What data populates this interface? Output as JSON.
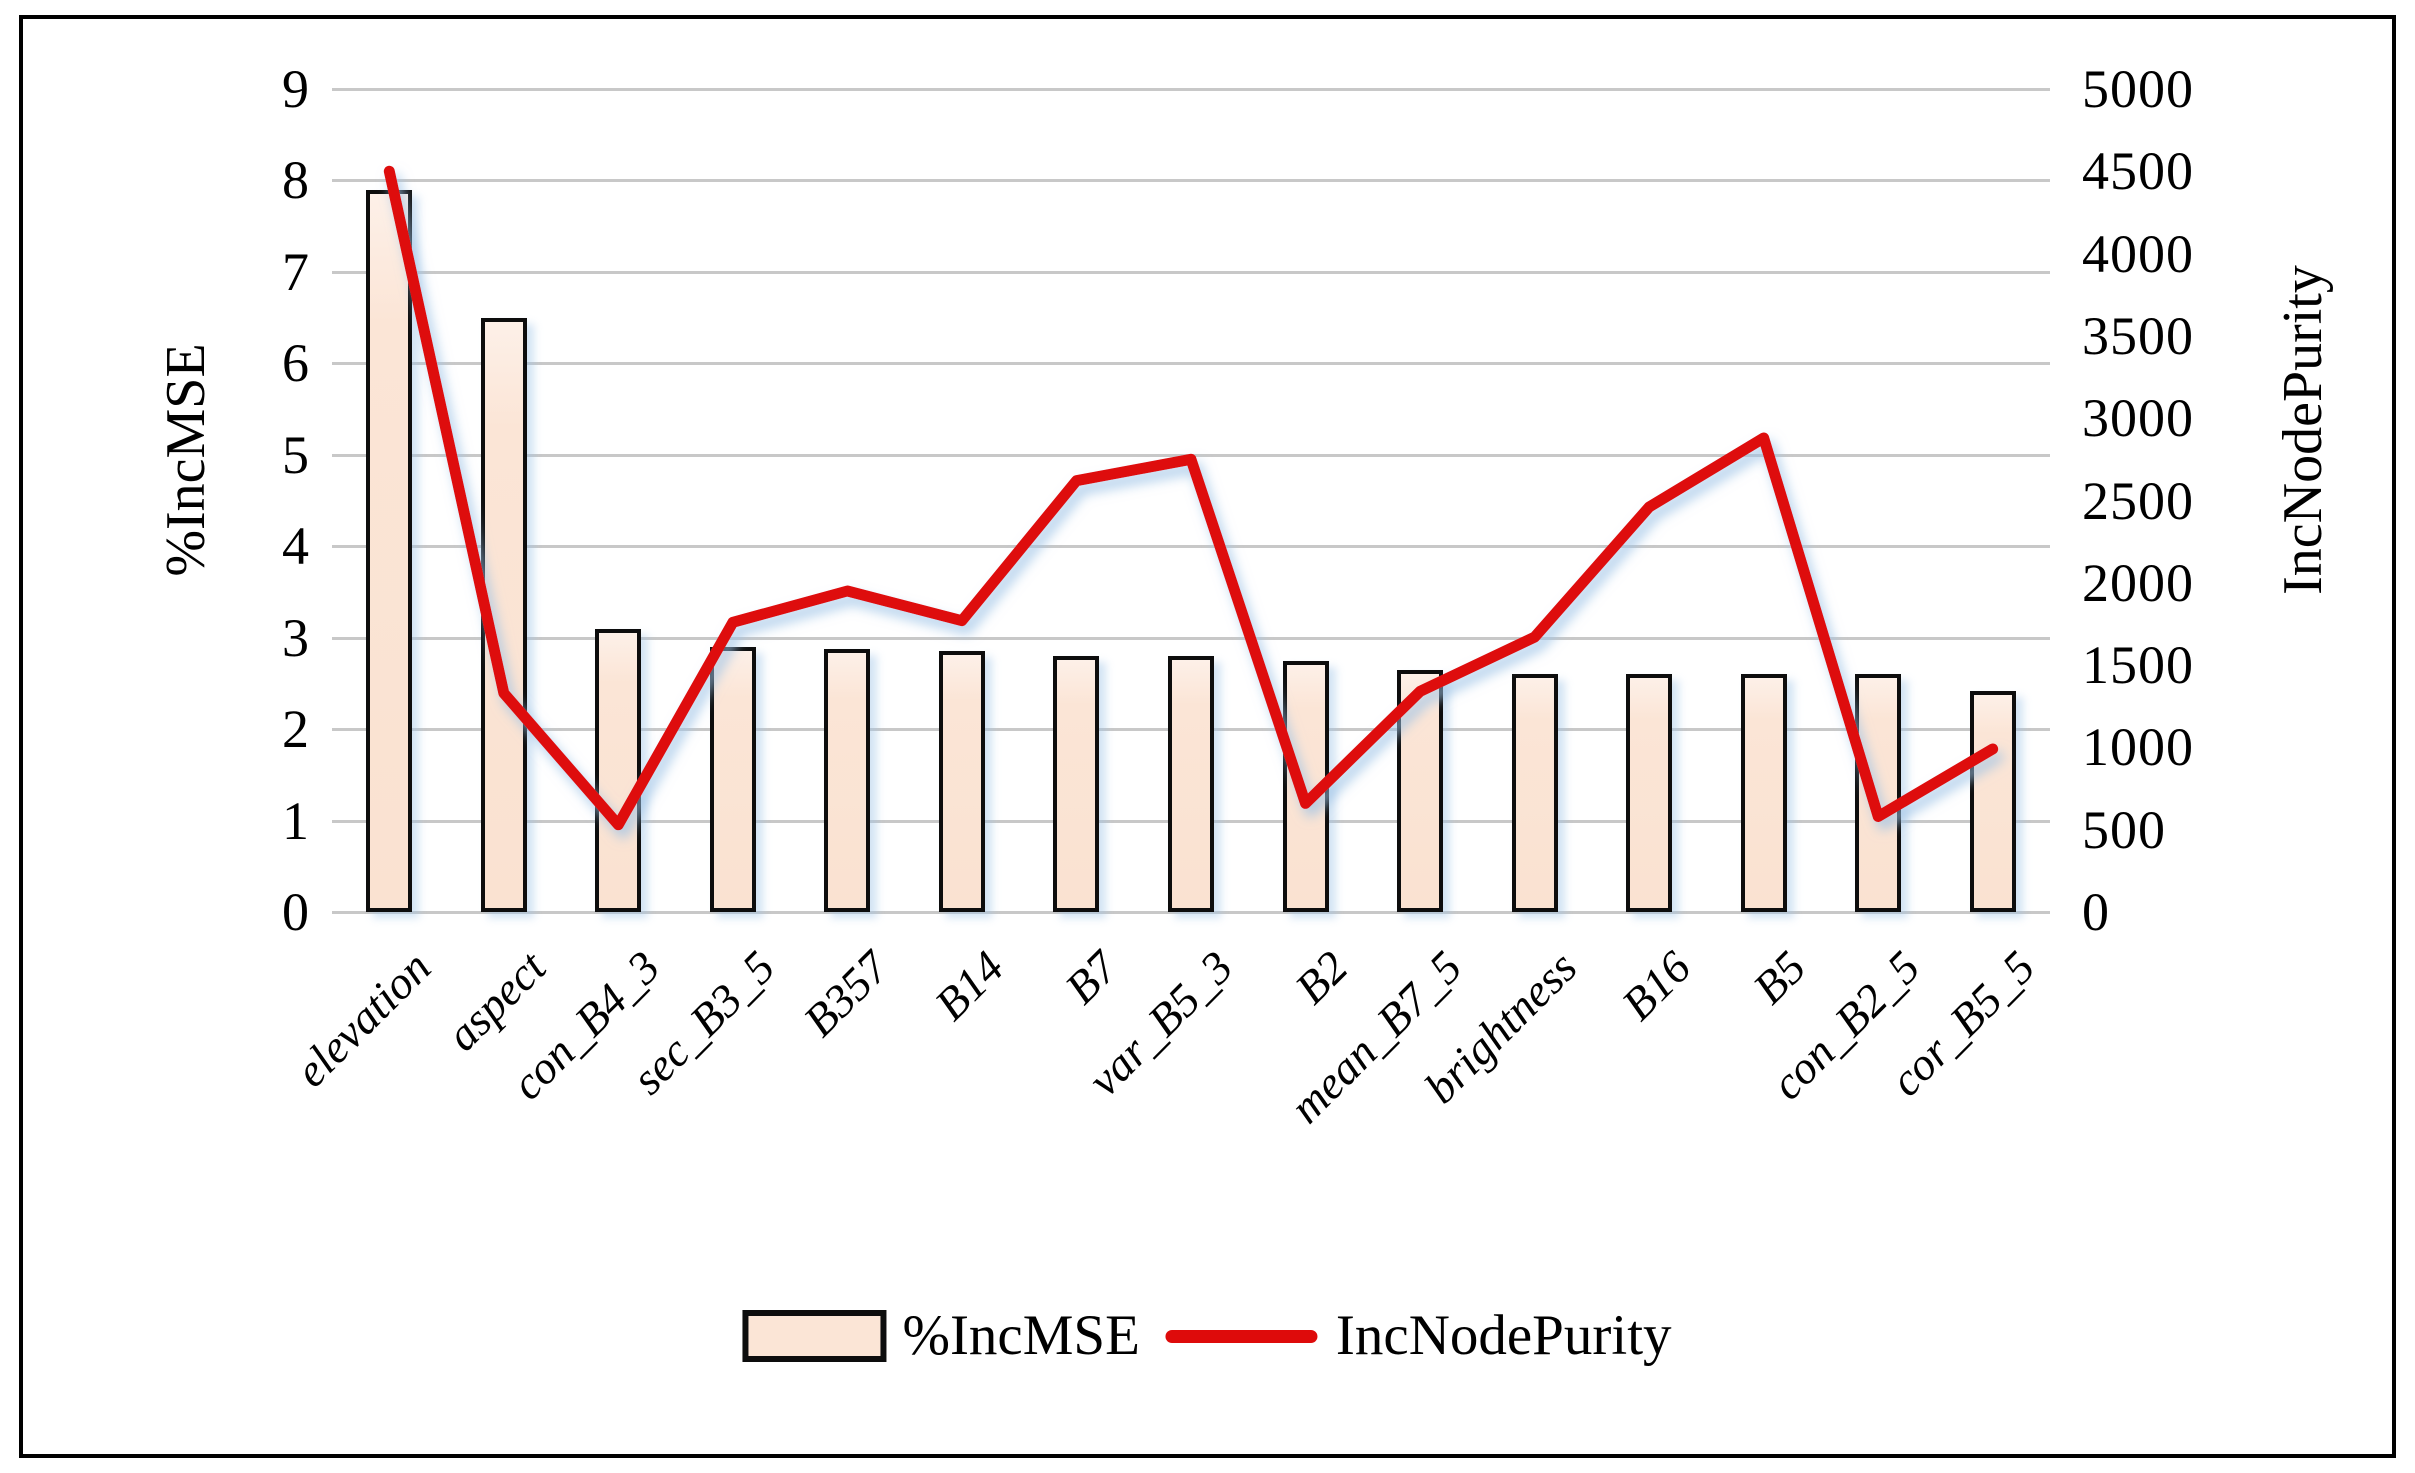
{
  "chart_data": {
    "type": "bar+line combo",
    "categories": [
      "elevation",
      "aspect",
      "con_B4_3",
      "sec_B3_5",
      "B357",
      "B14",
      "B7",
      "var_B5_3",
      "B2",
      "mean_B7_5",
      "brightness",
      "B16",
      "B5",
      "con_B2_5",
      "cor_B5_5"
    ],
    "series": [
      {
        "name": "%IncMSE",
        "type": "bar",
        "axis": "left",
        "values": [
          7.9,
          6.5,
          3.1,
          2.9,
          2.88,
          2.85,
          2.8,
          2.8,
          2.74,
          2.65,
          2.6,
          2.6,
          2.6,
          2.6,
          2.42
        ]
      },
      {
        "name": "IncNodePurity",
        "type": "line",
        "axis": "right",
        "values": [
          4500,
          1330,
          530,
          1760,
          1950,
          1770,
          2620,
          2750,
          660,
          1340,
          1670,
          2460,
          2880,
          580,
          990
        ]
      }
    ],
    "left_axis": {
      "label": "%IncMSE",
      "min": 0,
      "max": 9,
      "step": 1,
      "ticks": [
        0,
        1,
        2,
        3,
        4,
        5,
        6,
        7,
        8,
        9
      ]
    },
    "right_axis": {
      "label": "IncNodePurity",
      "min": 0,
      "max": 5000,
      "step": 500,
      "ticks": [
        0,
        500,
        1000,
        1500,
        2000,
        2500,
        3000,
        3500,
        4000,
        4500,
        5000
      ]
    },
    "legend": [
      "%IncMSE",
      "IncNodePurity"
    ],
    "legend_position": "bottom",
    "grid": true,
    "colors": {
      "bar_fill": "#FBE5D6",
      "bar_border": "#0D0D0D",
      "line": "#DE0B0B",
      "line_glow": "#9DC3E6",
      "gridline": "#C8C8C8",
      "text": "#000000"
    }
  }
}
